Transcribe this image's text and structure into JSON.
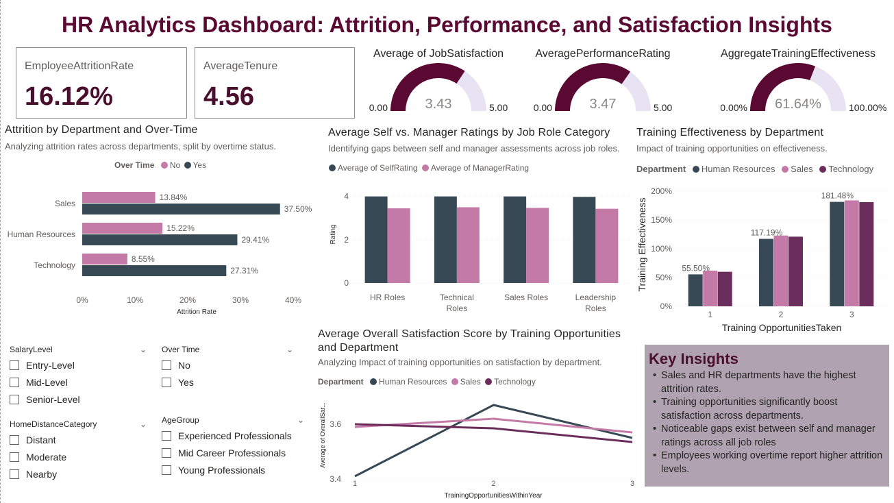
{
  "title": "HR Analytics Dashboard: Attrition, Performance, and Satisfaction Insights",
  "colors": {
    "dark": "#374955",
    "pink": "#c47aa7",
    "purple": "#6b2d5c",
    "gauge_fill": "#5a0a32",
    "gauge_bg": "#e8e3f3",
    "title": "#5a0a32"
  },
  "cards": [
    {
      "label": "EmployeeAttritionRate",
      "value": "16.12%"
    },
    {
      "label": "AverageTenure",
      "value": "4.56"
    }
  ],
  "gauges": [
    {
      "title": "Average of JobSatisfaction",
      "value_label": "3.43",
      "min": "0.00",
      "max": "5.00",
      "fraction": 0.686
    },
    {
      "title": "AveragePerformanceRating",
      "value_label": "3.47",
      "min": "0.00",
      "max": "5.00",
      "fraction": 0.694
    },
    {
      "title": "AggregateTrainingEffectiveness",
      "value_label": "61.64%",
      "min": "0.00%",
      "max": "100.00%",
      "fraction": 0.6164
    }
  ],
  "attrition_chart": {
    "title": "Attrition by Department and Over-Time",
    "subtitle": "Analyzing attrition rates across departments, split by overtime status.",
    "legend_title": "Over Time",
    "xlabel": "Attrition Rate",
    "legend": [
      "No",
      "Yes"
    ]
  },
  "selfmgr_chart": {
    "title": "Average Self vs. Manager Ratings by Job Role Category",
    "subtitle": "Identifying gaps between self and manager assessments across job roles.",
    "ylabel": "Rating",
    "legend": [
      "Average of SelfRating",
      "Average of ManagerRating"
    ]
  },
  "training_chart": {
    "title": "Training Effectiveness by Department",
    "subtitle": "Impact of training opportunities on effectiveness.",
    "legend_title": "Department",
    "xlabel": "Training OpportunitiesTaken",
    "ylabel": "Training Effectiveness",
    "legend": [
      "Human Resources",
      "Sales",
      "Technology"
    ]
  },
  "satisfaction_chart": {
    "title_line1": "Average Overall Satisfaction Score by Training Opportunities",
    "title_line2": "and Department",
    "subtitle": "Analyzing Impact of training opportunities on satisfaction by department.",
    "legend_title": "Department",
    "xlabel": "TrainingOpportunitiesWithinYear",
    "ylabel": "Average of OverallSat...",
    "legend": [
      "Human Resources",
      "Sales",
      "Technology"
    ]
  },
  "chart_data": [
    {
      "type": "bar",
      "orientation": "horizontal",
      "categories": [
        "Sales",
        "Human Resources",
        "Technology"
      ],
      "series": [
        {
          "name": "No",
          "values": [
            13.84,
            15.22,
            8.55
          ],
          "labels": [
            "13.84%",
            "15.22%",
            "8.55%"
          ]
        },
        {
          "name": "Yes",
          "values": [
            37.5,
            29.41,
            27.31
          ],
          "labels": [
            "37.50%",
            "29.41%",
            "27.31%"
          ]
        }
      ],
      "xticks": [
        "0%",
        "10%",
        "20%",
        "30%",
        "40%"
      ],
      "xlim": [
        0,
        40
      ],
      "title": "Attrition by Department and Over-Time",
      "xlabel": "Attrition Rate"
    },
    {
      "type": "bar",
      "categories": [
        "HR Roles",
        "Technical Roles",
        "Sales Roles",
        "Leadership Roles"
      ],
      "series": [
        {
          "name": "Average of SelfRating",
          "values": [
            4.0,
            4.0,
            4.0,
            3.98
          ]
        },
        {
          "name": "Average of ManagerRating",
          "values": [
            3.45,
            3.5,
            3.47,
            3.43
          ]
        }
      ],
      "yticks": [
        "0",
        "2",
        "4"
      ],
      "ylim": [
        0,
        4.4
      ],
      "title": "Average Self vs. Manager Ratings by Job Role Category",
      "ylabel": "Rating"
    },
    {
      "type": "bar",
      "categories": [
        "1",
        "2",
        "3"
      ],
      "series": [
        {
          "name": "Human Resources",
          "values": [
            55.5,
            117.19,
            181.48
          ],
          "labels": [
            "55.50%",
            "117.19%",
            "181.48%"
          ]
        },
        {
          "name": "Sales",
          "values": [
            62,
            123,
            184
          ]
        },
        {
          "name": "Technology",
          "values": [
            60,
            121,
            181
          ]
        }
      ],
      "yticks": [
        "0%",
        "50%",
        "100%",
        "150%",
        "200%"
      ],
      "ylim": [
        0,
        200
      ],
      "title": "Training Effectiveness by Department",
      "xlabel": "Training OpportunitiesTaken",
      "ylabel": "Training Effectiveness"
    },
    {
      "type": "line",
      "x": [
        "1",
        "2",
        "3"
      ],
      "series": [
        {
          "name": "Human Resources",
          "values": [
            3.41,
            3.67,
            3.55
          ]
        },
        {
          "name": "Sales",
          "values": [
            3.59,
            3.62,
            3.57
          ]
        },
        {
          "name": "Technology",
          "values": [
            3.6,
            3.585,
            3.535
          ]
        }
      ],
      "yticks": [
        "3.4",
        "3.6"
      ],
      "ylim": [
        3.38,
        3.7
      ],
      "title": "Average Overall Satisfaction Score by Training Opportunities and Department",
      "xlabel": "TrainingOpportunitiesWithinYear",
      "ylabel": "Average of OverallSat..."
    }
  ],
  "slicers": [
    {
      "title": "SalaryLevel",
      "items": [
        "Entry-Level",
        "Mid-Level",
        "Senior-Level"
      ]
    },
    {
      "title": "Over Time",
      "items": [
        "No",
        "Yes"
      ]
    },
    {
      "title": "HomeDistanceCategory",
      "items": [
        "Distant",
        "Moderate",
        "Nearby"
      ]
    },
    {
      "title": "AgeGroup",
      "items": [
        "Experienced Professionals",
        "Mid Career Professionals",
        "Young Professionals"
      ]
    }
  ],
  "insights": {
    "title": "Key Insights",
    "items": [
      "Sales and HR departments have the highest attrition rates.",
      "Training opportunities significantly boost satisfaction across departments.",
      "Noticeable gaps exist between self and manager ratings across all job roles",
      "Employees working overtime report higher attrition levels."
    ]
  }
}
